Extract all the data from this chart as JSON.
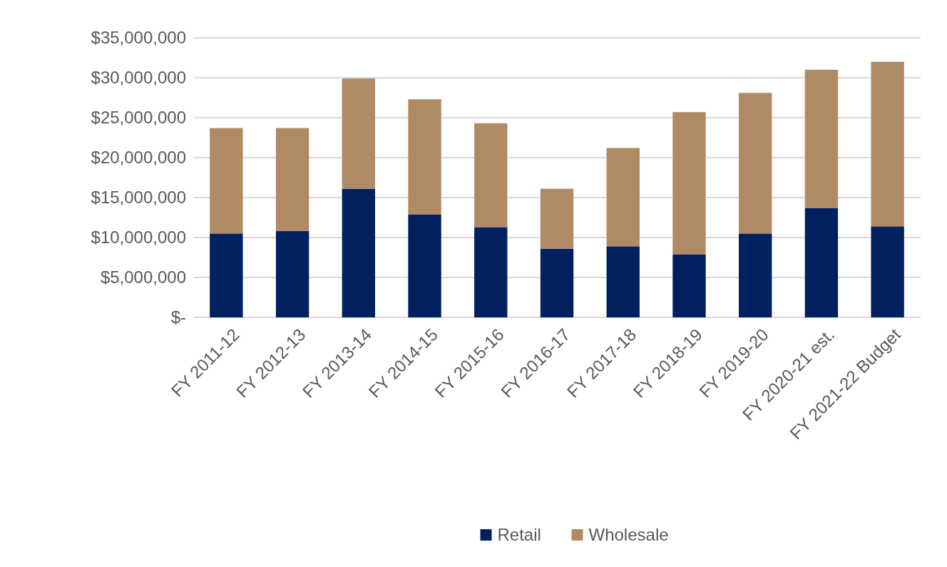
{
  "chart_data": {
    "type": "bar",
    "stacked": true,
    "categories": [
      "FY 2011-12",
      "FY 2012-13",
      "FY 2013-14",
      "FY 2014-15",
      "FY 2015-16",
      "FY 2016-17",
      "FY 2017-18",
      "FY 2018-19",
      "FY 2019-20",
      "FY 2020-21 est.",
      "FY 2021-22 Budget"
    ],
    "series": [
      {
        "name": "Retail",
        "color": "#002060",
        "values": [
          10500000,
          10800000,
          16100000,
          12900000,
          11300000,
          8600000,
          8900000,
          7900000,
          10500000,
          13700000,
          11400000
        ]
      },
      {
        "name": "Wholesale",
        "color": "#b08a64",
        "values": [
          13200000,
          12900000,
          13800000,
          14400000,
          13000000,
          7500000,
          12300000,
          17800000,
          17600000,
          17300000,
          20600000
        ]
      }
    ],
    "ylim": [
      0,
      35000000
    ],
    "yticks": [
      {
        "value": 0,
        "label": "$-"
      },
      {
        "value": 5000000,
        "label": "$5,000,000"
      },
      {
        "value": 10000000,
        "label": "$10,000,000"
      },
      {
        "value": 15000000,
        "label": "$15,000,000"
      },
      {
        "value": 20000000,
        "label": "$20,000,000"
      },
      {
        "value": 25000000,
        "label": "$25,000,000"
      },
      {
        "value": 30000000,
        "label": "$30,000,000"
      },
      {
        "value": 35000000,
        "label": "$35,000,000"
      }
    ],
    "grid": "y",
    "legend": "bottom"
  }
}
